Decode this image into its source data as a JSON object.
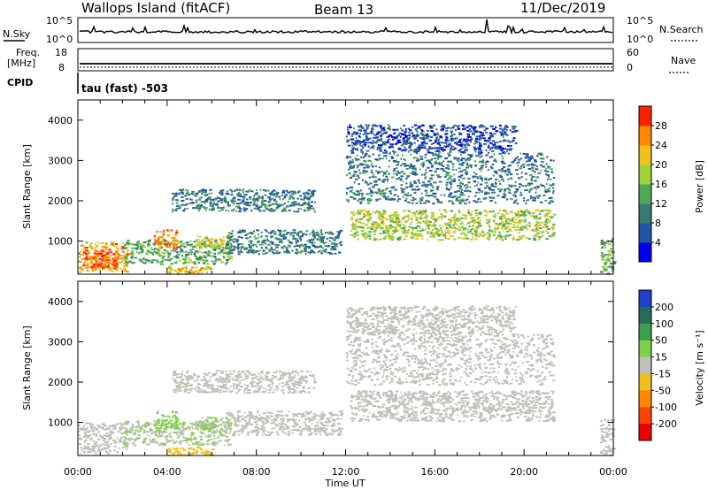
{
  "header": {
    "site": "Wallops Island (fitACF)",
    "beam": "Beam 13",
    "date": "11/Dec/2019"
  },
  "noise_panel": {
    "left_label": "N.Sky",
    "right_label": "N.Search",
    "left_ticks": [
      "10^5",
      "10^0"
    ],
    "right_ticks": [
      "10^5",
      "10^0"
    ]
  },
  "freq_panel": {
    "left_label_line1": "Freq.",
    "left_label_line2": "[MHz]",
    "right_label": "Nave",
    "left_ticks": [
      "18",
      "8"
    ],
    "right_ticks": [
      "60",
      "0"
    ]
  },
  "cpid": {
    "label": "CPID",
    "value": "tau (fast) -503"
  },
  "chart_data": [
    {
      "type": "heatmap",
      "title": "",
      "ylabel": "Slant Range [km]",
      "xlabel": "",
      "x_ticks": [
        "00:00",
        "04:00",
        "08:00",
        "12:00",
        "16:00",
        "20:00",
        "00:00"
      ],
      "xlim": [
        0,
        24
      ],
      "y_ticks": [
        1000,
        2000,
        3000,
        4000
      ],
      "ylim": [
        180,
        4500
      ],
      "colorbar": {
        "label": "Power [dB]",
        "ticks": [
          4,
          8,
          12,
          16,
          20,
          24,
          28
        ],
        "range": [
          0,
          32
        ],
        "colors": [
          "#0000ee",
          "#2255aa",
          "#3a7a72",
          "#4caa55",
          "#9fd23a",
          "#f0c020",
          "#ff8800",
          "#ff2200"
        ]
      },
      "echo_regions": [
        {
          "t_start": 0.0,
          "t_end": 2.2,
          "r_min": 250,
          "r_max": 1000,
          "value": 24
        },
        {
          "t_start": 0.2,
          "t_end": 1.8,
          "r_min": 350,
          "r_max": 800,
          "value": 29
        },
        {
          "t_start": 2.0,
          "t_end": 6.8,
          "r_min": 450,
          "r_max": 1050,
          "value": 14
        },
        {
          "t_start": 3.4,
          "t_end": 4.4,
          "r_min": 850,
          "r_max": 1300,
          "value": 26
        },
        {
          "t_start": 5.2,
          "t_end": 6.8,
          "r_min": 850,
          "r_max": 1150,
          "value": 20
        },
        {
          "t_start": 6.6,
          "t_end": 11.8,
          "r_min": 700,
          "r_max": 1300,
          "value": 10
        },
        {
          "t_start": 4.2,
          "t_end": 10.6,
          "r_min": 1750,
          "r_max": 2300,
          "value": 9
        },
        {
          "t_start": 12.2,
          "t_end": 21.3,
          "r_min": 1050,
          "r_max": 1800,
          "value": 18
        },
        {
          "t_start": 12.0,
          "t_end": 21.3,
          "r_min": 1950,
          "r_max": 3200,
          "value": 9
        },
        {
          "t_start": 12.0,
          "t_end": 19.6,
          "r_min": 3200,
          "r_max": 3900,
          "value": 6
        },
        {
          "t_start": 4.0,
          "t_end": 6.0,
          "r_min": 200,
          "r_max": 400,
          "value": 22
        },
        {
          "t_start": 23.4,
          "t_end": 24.0,
          "r_min": 200,
          "r_max": 1100,
          "value": 15
        }
      ]
    },
    {
      "type": "heatmap",
      "title": "",
      "ylabel": "Slant Range [km]",
      "xlabel": "Time UT",
      "x_ticks": [
        "00:00",
        "04:00",
        "08:00",
        "12:00",
        "16:00",
        "20:00",
        "00:00"
      ],
      "xlim": [
        0,
        24
      ],
      "y_ticks": [
        1000,
        2000,
        3000,
        4000
      ],
      "ylim": [
        180,
        4500
      ],
      "colorbar": {
        "label": "Velocity [m s⁻¹]",
        "ticks": [
          200,
          100,
          50,
          15,
          -15,
          -50,
          -100,
          -200
        ],
        "range": [
          -250,
          250
        ],
        "colors": [
          "#1f3fcc",
          "#2a6a5a",
          "#3aa04a",
          "#7fd04a",
          "#c0c0b8",
          "#f0c020",
          "#ff8800",
          "#ff4400",
          "#ee0000"
        ]
      },
      "echo_regions": [
        {
          "t_start": 0.0,
          "t_end": 2.2,
          "r_min": 250,
          "r_max": 1000,
          "value": 0
        },
        {
          "t_start": 2.0,
          "t_end": 6.8,
          "r_min": 450,
          "r_max": 1050,
          "value": 25
        },
        {
          "t_start": 3.4,
          "t_end": 4.4,
          "r_min": 850,
          "r_max": 1300,
          "value": 40
        },
        {
          "t_start": 5.2,
          "t_end": 6.8,
          "r_min": 850,
          "r_max": 1150,
          "value": 30
        },
        {
          "t_start": 6.6,
          "t_end": 11.8,
          "r_min": 700,
          "r_max": 1300,
          "value": 15
        },
        {
          "t_start": 4.2,
          "t_end": 10.6,
          "r_min": 1750,
          "r_max": 2300,
          "value": 0
        },
        {
          "t_start": 12.2,
          "t_end": 21.3,
          "r_min": 1050,
          "r_max": 1800,
          "value": 0
        },
        {
          "t_start": 12.0,
          "t_end": 21.3,
          "r_min": 1950,
          "r_max": 3200,
          "value": 0
        },
        {
          "t_start": 12.0,
          "t_end": 19.6,
          "r_min": 3200,
          "r_max": 3900,
          "value": 0
        },
        {
          "t_start": 4.0,
          "t_end": 6.0,
          "r_min": 200,
          "r_max": 400,
          "value": -40
        },
        {
          "t_start": 23.4,
          "t_end": 24.0,
          "r_min": 200,
          "r_max": 1100,
          "value": 0
        }
      ]
    }
  ]
}
